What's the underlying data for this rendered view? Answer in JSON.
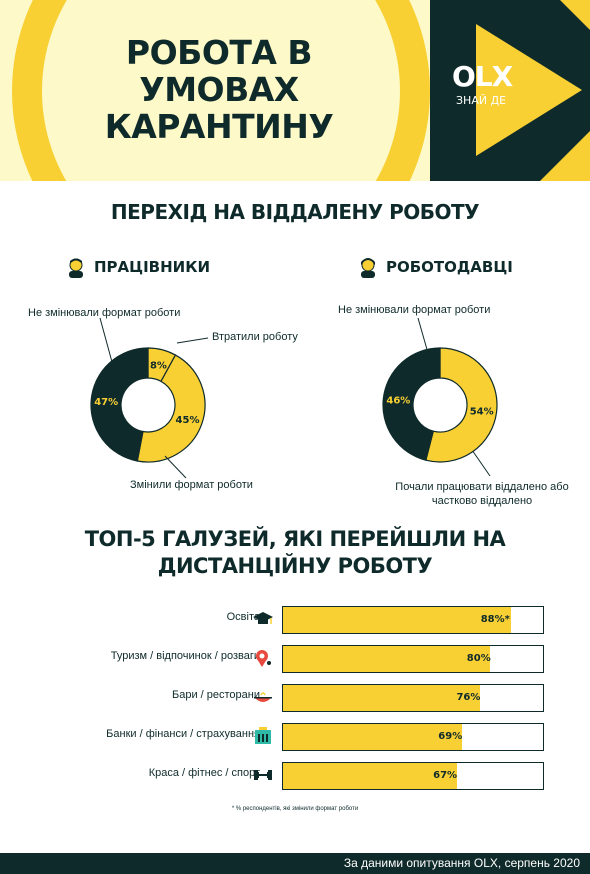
{
  "header": {
    "title_lines": [
      "РОБОТА В",
      "УМОВАХ",
      "КАРАНТИНУ"
    ],
    "brand": "OLX",
    "brand_tagline": "ЗНАЙ ДЕ"
  },
  "section1": {
    "title": "ПЕРЕХІД НА ВІДДАЛЕНУ РОБОТУ"
  },
  "section2": {
    "title_lines": [
      "ТОП-5 ГАЛУЗЕЙ, ЯКІ ПЕРЕЙШЛИ НА",
      "ДИСТАНЦІЙНУ РОБОТУ"
    ]
  },
  "colors": {
    "dark": "#0f2a2a",
    "yellow": "#f9d034",
    "cream": "#fdf9c8"
  },
  "chart_data": [
    {
      "type": "pie",
      "title": "ПРАЦІВНИКИ",
      "icon": "worker-person-icon",
      "slices": [
        {
          "label": "Втратили роботу",
          "value": 8,
          "display": "8%",
          "color": "#f9d034"
        },
        {
          "label": "Змінили формат роботи",
          "value": 45,
          "display": "45%",
          "color": "#f9d034"
        },
        {
          "label": "Не змінювали формат роботи",
          "value": 47,
          "display": "47%",
          "color": "#0f2a2a"
        }
      ]
    },
    {
      "type": "pie",
      "title": "РОБОТОДАВЦІ",
      "icon": "employer-person-icon",
      "slices": [
        {
          "label": "Почали працювати віддалено або частково віддалено",
          "value": 54,
          "display": "54%",
          "color": "#f9d034"
        },
        {
          "label": "Не змінювали формат роботи",
          "value": 46,
          "display": "46%",
          "color": "#0f2a2a"
        }
      ],
      "label_lines": {
        "employer_started": [
          "Почали працювати віддалено або",
          "частково віддалено"
        ]
      }
    },
    {
      "type": "bar",
      "orientation": "horizontal",
      "categories": [
        "Освіта",
        "Туризм / відпочинок / розваги",
        "Бари / ресторани",
        "Банки / фінанси / страхування",
        "Краса / фітнес / спорт"
      ],
      "values": [
        88,
        80,
        76,
        69,
        67
      ],
      "value_labels": [
        "88%*",
        "80%",
        "76%",
        "69%",
        "67%"
      ],
      "icons": [
        "graduation-cap-icon",
        "map-pin-icon",
        "food-dish-icon",
        "bank-icon",
        "dumbbell-icon"
      ],
      "xlim": [
        0,
        100
      ],
      "footnote": "* % респондентів, які змінили формат роботи"
    }
  ],
  "footer": {
    "text": "За даними опитування OLX, серпень 2020"
  }
}
